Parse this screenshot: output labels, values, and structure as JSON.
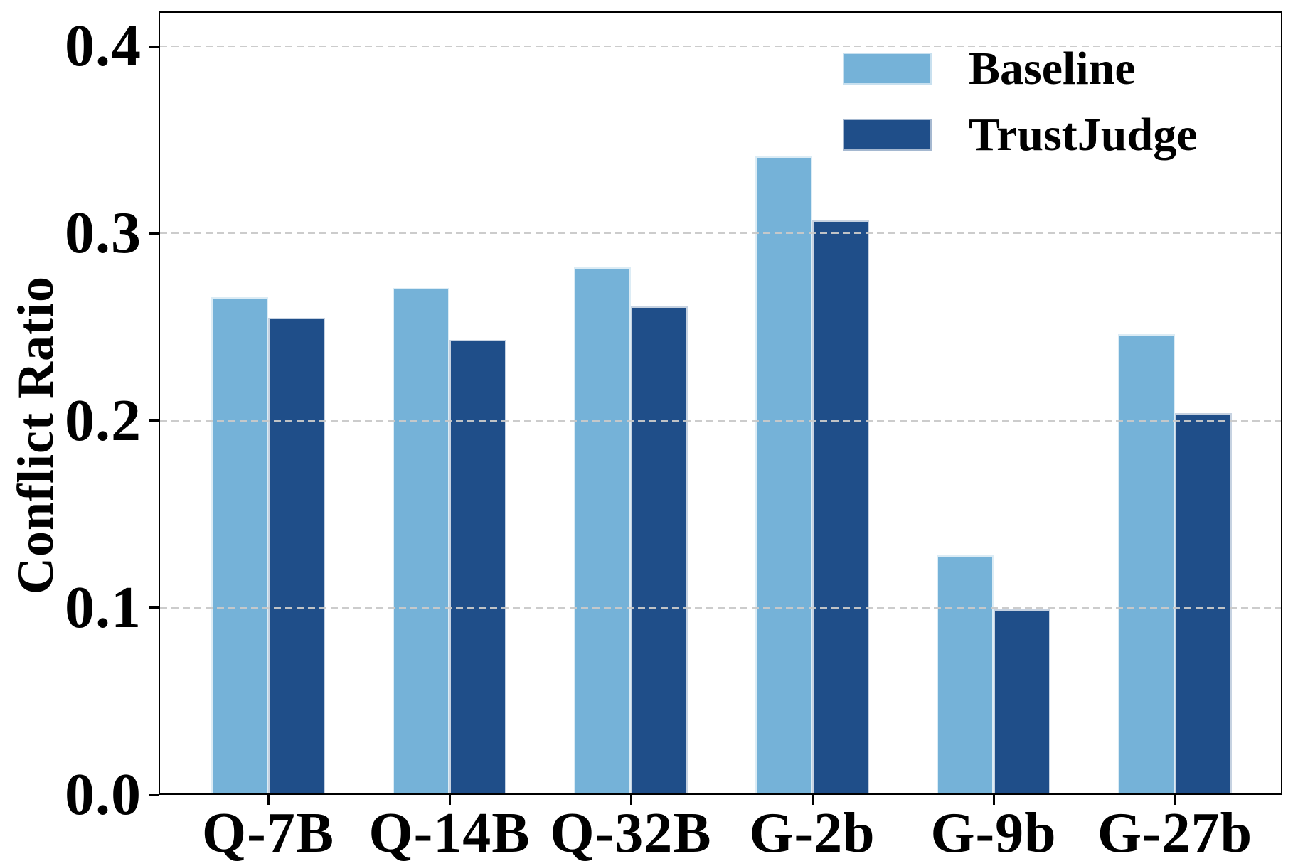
{
  "figure": {
    "background": "#ffffff",
    "text_color": "#000000",
    "grid_color": "#c9c9c9"
  },
  "chart_data": {
    "type": "bar",
    "title": "",
    "xlabel": "",
    "ylabel": "Conflict Ratio",
    "categories": [
      "Q-7B",
      "Q-14B",
      "Q-32B",
      "G-2b",
      "G-9b",
      "G-27b"
    ],
    "series": [
      {
        "name": "Baseline",
        "color": "#75B2D8",
        "values": [
          0.266,
          0.271,
          0.282,
          0.341,
          0.128,
          0.246
        ]
      },
      {
        "name": "TrustJudge",
        "color": "#1F4E89",
        "values": [
          0.255,
          0.243,
          0.261,
          0.307,
          0.099,
          0.204
        ]
      }
    ],
    "y_ticks": [
      "0.0",
      "0.1",
      "0.2",
      "0.3",
      "0.4"
    ],
    "y_tick_values": [
      0.0,
      0.1,
      0.2,
      0.3,
      0.4
    ],
    "ylim": [
      0,
      0.4187
    ],
    "grid": "horizontal-dashed-above-bars",
    "legend_position": "upper-right",
    "legend_frame": false
  }
}
